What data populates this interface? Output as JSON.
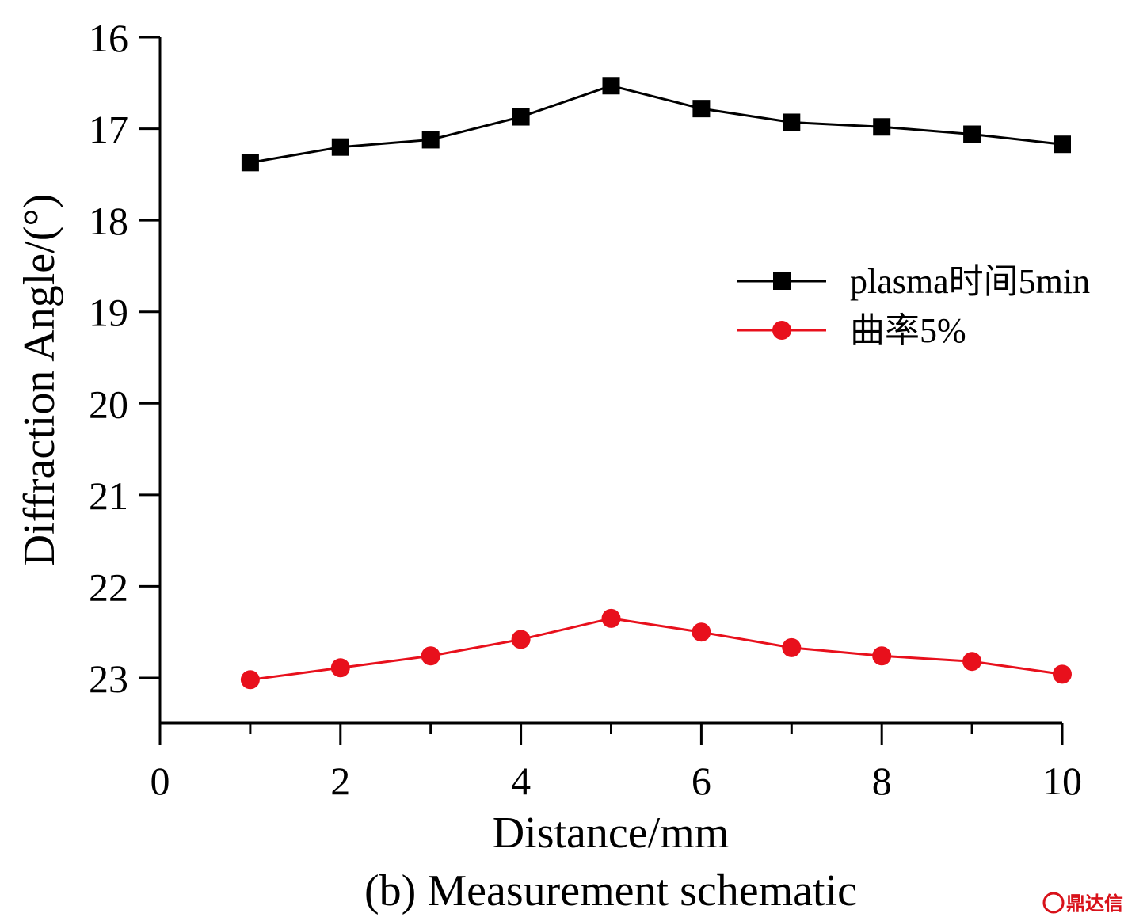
{
  "chart_data": {
    "type": "line",
    "title": "",
    "caption": "(b) Measurement schematic",
    "xlabel": "Distance/mm",
    "ylabel": "Diffraction Angle/(°)",
    "xlim": [
      0,
      10
    ],
    "ylim": [
      16,
      23.5
    ],
    "y_inverted": true,
    "xticks": [
      0,
      2,
      4,
      6,
      8,
      10
    ],
    "yticks": [
      16,
      17,
      18,
      19,
      20,
      21,
      22,
      23
    ],
    "grid": false,
    "legend_position": "right-middle",
    "x": [
      1,
      2,
      3,
      4,
      5,
      6,
      7,
      8,
      9,
      10
    ],
    "series": [
      {
        "name": "plasma时间5min",
        "color": "#000000",
        "marker": "square",
        "values": [
          17.37,
          17.2,
          17.12,
          16.87,
          16.53,
          16.78,
          16.93,
          16.98,
          17.06,
          17.17
        ]
      },
      {
        "name": "曲率5%",
        "color": "#e8101c",
        "marker": "circle",
        "values": [
          23.02,
          22.89,
          22.76,
          22.58,
          22.35,
          22.5,
          22.67,
          22.76,
          22.82,
          22.96
        ]
      }
    ]
  },
  "watermark": {
    "text": "鼎达信",
    "color": "#d8121a"
  }
}
